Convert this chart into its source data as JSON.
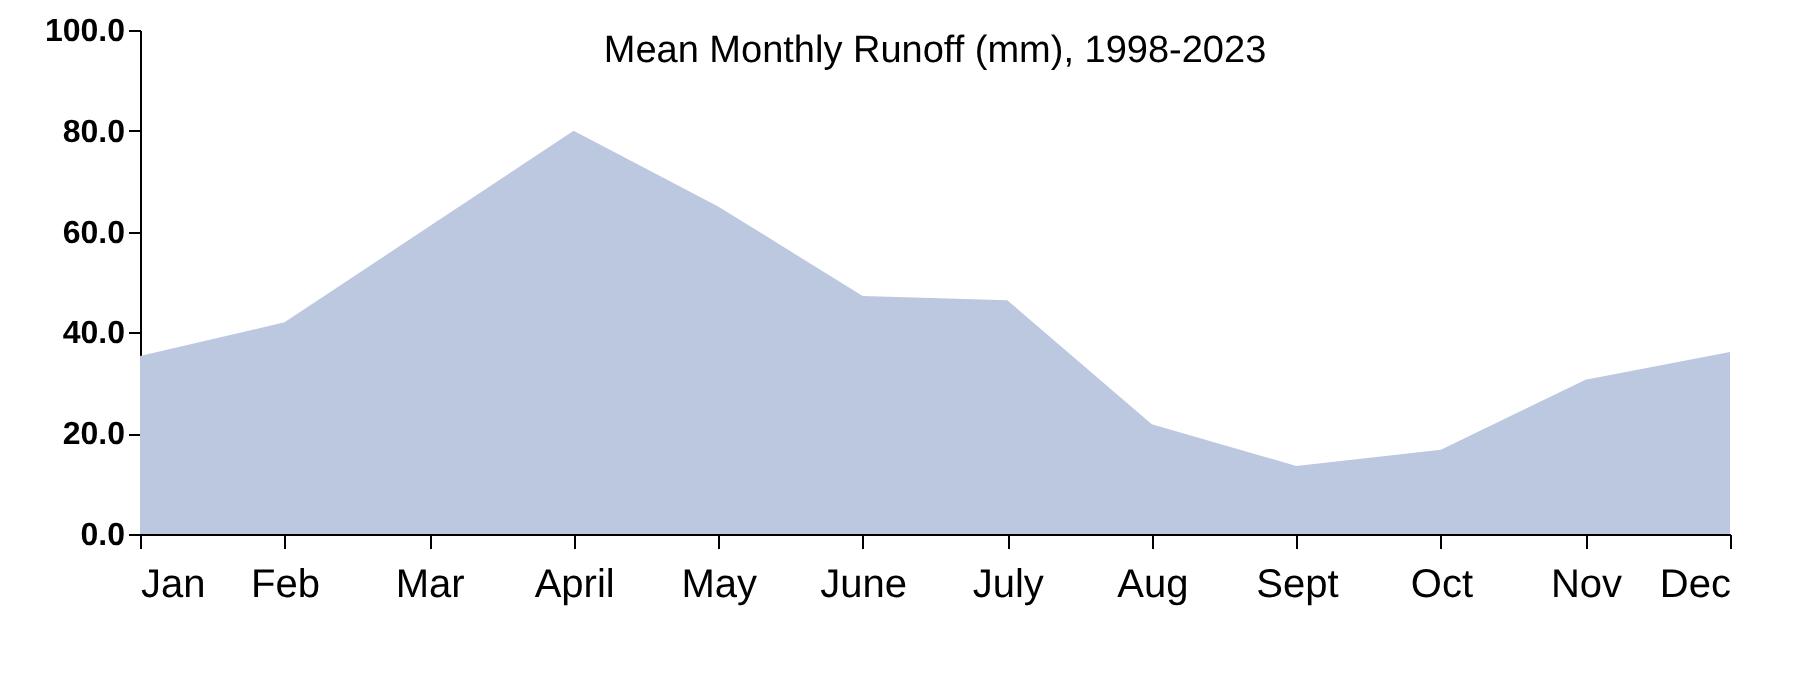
{
  "chart_data": {
    "type": "area",
    "title": "Mean Monthly Runoff (mm), 1998-2023",
    "categories": [
      "Jan",
      "Feb",
      "Mar",
      "April",
      "May",
      "June",
      "July",
      "Aug",
      "Sept",
      "Oct",
      "Nov",
      "Dec"
    ],
    "values": [
      35.3,
      42,
      61,
      80,
      65,
      47.2,
      46.4,
      21.8,
      13.5,
      16.7,
      30.6,
      36.1
    ],
    "color": "#bcc8e0",
    "ylim": [
      0,
      100
    ],
    "yticks": [
      {
        "value": 0,
        "label": "0.0"
      },
      {
        "value": 20,
        "label": "20.0"
      },
      {
        "value": 40,
        "label": "40.0"
      },
      {
        "value": 60,
        "label": "60.0"
      },
      {
        "value": 80,
        "label": "80.0"
      },
      {
        "value": 100,
        "label": "100.0"
      }
    ],
    "grid": false
  }
}
